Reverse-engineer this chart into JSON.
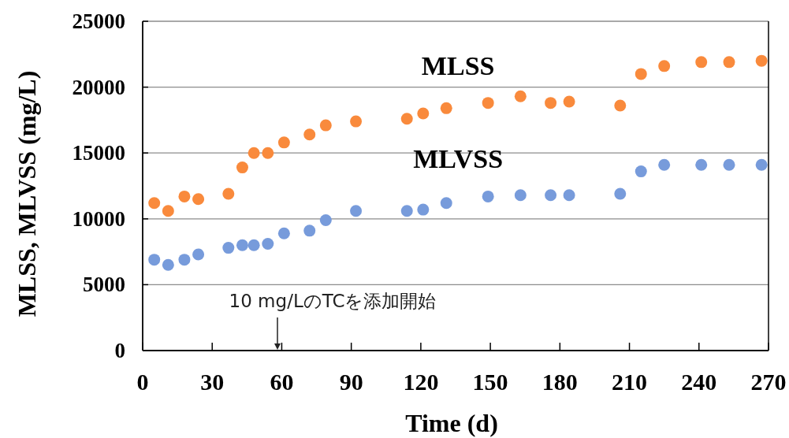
{
  "chart_data": {
    "type": "scatter",
    "xlabel": "Time (d)",
    "ylabel": "MLSS, MLVSS (mg/L)",
    "x": [
      5,
      11,
      18,
      24,
      37,
      43,
      48,
      54,
      61,
      72,
      79,
      92,
      114,
      121,
      131,
      149,
      163,
      176,
      184,
      206,
      215,
      225,
      241,
      253,
      267
    ],
    "series": [
      {
        "name": "MLSS",
        "color": "#f98a3c",
        "values": [
          11200,
          10600,
          11700,
          11500,
          11900,
          13900,
          15000,
          15000,
          15800,
          16400,
          17100,
          17400,
          17600,
          18000,
          18400,
          18800,
          19300,
          18800,
          18900,
          18600,
          21000,
          21600,
          21900,
          21900,
          22000
        ]
      },
      {
        "name": "MLVSS",
        "color": "#779bdb",
        "values": [
          6900,
          6500,
          6900,
          7300,
          7800,
          8000,
          8000,
          8100,
          8900,
          9100,
          9900,
          10600,
          10600,
          10700,
          11200,
          11700,
          11800,
          11800,
          11800,
          11900,
          13600,
          14100,
          14100,
          14100,
          14100
        ]
      }
    ],
    "xlim": [
      0,
      270
    ],
    "xticks": [
      0,
      30,
      60,
      90,
      120,
      150,
      180,
      210,
      240,
      270
    ],
    "ylim": [
      0,
      25000
    ],
    "yticks": [
      0,
      5000,
      10000,
      15000,
      20000,
      25000
    ],
    "grid": "y",
    "marker": "circle",
    "annotations": [
      "10 mg/LのTCを添加開始"
    ]
  }
}
